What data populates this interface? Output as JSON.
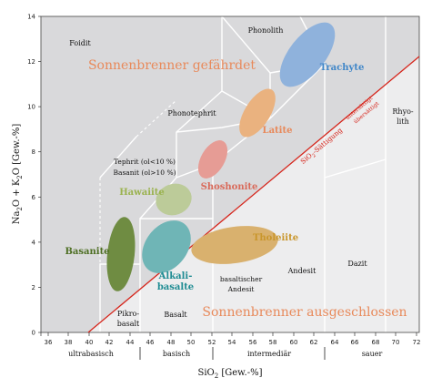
{
  "y_axis": {
    "label_parts": [
      "Na",
      "2",
      "O + K",
      "2",
      "O [Gew.-%]"
    ],
    "ticks": [
      "0",
      "2",
      "4",
      "6",
      "8",
      "10",
      "12",
      "14"
    ]
  },
  "x_axis": {
    "label_parts": [
      "SiO",
      "2",
      " [Gew.-%]"
    ],
    "ticks": [
      "36",
      "38",
      "40",
      "42",
      "44",
      "46",
      "48",
      "50",
      "52",
      "54",
      "56",
      "58",
      "60",
      "62",
      "64",
      "66",
      "68",
      "70",
      "72"
    ]
  },
  "classes": [
    "ultrabasisch",
    "basisch",
    "intermediär",
    "sauer"
  ],
  "regions": {
    "sonnenbrenner_gefaehrdet": "Sonnenbrenner gefährdet",
    "sonnenbrenner_ausgeschlossen": "Sonnenbrenner ausgeschlossen"
  },
  "fields": {
    "foidit": "Foidit",
    "phonolith": "Phonolith",
    "phonotephrit": "Phonotephrit",
    "tephrit": "Tephrit (ol<10 %)",
    "basanit_field": "Basanit (ol>10 %)",
    "basaltischer": "basaltischer",
    "andesit_under": "Andesit",
    "andesit": "Andesit",
    "dazit": "Dazit",
    "rhyolith_1": "Rhyo-",
    "rhyolith_2": "lith",
    "pikro_1": "Pikro-",
    "pikro_2": "basalt",
    "basalt": "Basalt"
  },
  "saturation": {
    "label_parts": [
      "SiO",
      "2",
      "-Sättigung"
    ],
    "ueber": "untersättigt",
    "unter": "übersättigt"
  },
  "series": {
    "trachyte": "Trachyte",
    "latite": "Latite",
    "shoshonite": "Shoshonite",
    "hawaiite": "Hawaiite",
    "basanite": "Basanite",
    "alkalibasalte_1": "Alkali-",
    "alkalibasalte_2": "basalte",
    "tholeiite": "Tholeiite"
  },
  "colors": {
    "plot_bg": "#d9d9db",
    "lower_bg": "#ededee",
    "saturation_line": "#d6261c",
    "big_text": "#e8895a",
    "trachyte": "#8fb2dc",
    "latite": "#eab27f",
    "shoshonite": "#e69c95",
    "hawaiite": "#bccb99",
    "basanite": "#6f8c42",
    "alkalibasalte": "#6fb5b6",
    "tholeiite": "#d9b16e"
  }
}
